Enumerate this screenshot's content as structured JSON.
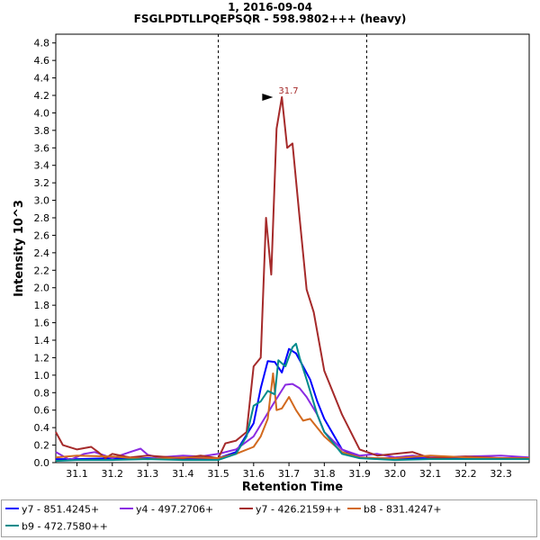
{
  "header": {
    "title": "1, 2016-09-04",
    "subtitle": "FSGLPDTLLPQEPSQR - 598.9802+++ (heavy)"
  },
  "chart_data": {
    "type": "line",
    "xlabel": "Retention Time",
    "ylabel": "Intensity  10^3",
    "xlim": [
      31.04,
      32.38
    ],
    "ylim": [
      0,
      4.9
    ],
    "x_ticks": [
      "31.1",
      "31.2",
      "31.3",
      "31.4",
      "31.5",
      "31.6",
      "31.7",
      "31.8",
      "31.9",
      "32.0",
      "32.1",
      "32.2",
      "32.3"
    ],
    "y_ticks": [
      "0.0",
      "0.2",
      "0.4",
      "0.6",
      "0.8",
      "1.0",
      "1.2",
      "1.4",
      "1.6",
      "1.8",
      "2.0",
      "2.2",
      "2.4",
      "2.6",
      "2.8",
      "3.0",
      "3.2",
      "3.4",
      "3.6",
      "3.8",
      "4.0",
      "4.2",
      "4.4",
      "4.6",
      "4.8"
    ],
    "boundary_lines": [
      31.5,
      31.92
    ],
    "peak_annotation": {
      "label": "31.7",
      "x": 31.66,
      "y": 4.18
    },
    "series": [
      {
        "name": "y7 - 851.4245+",
        "color": "#0000ff",
        "x": [
          31.04,
          31.1,
          31.2,
          31.3,
          31.4,
          31.5,
          31.55,
          31.6,
          31.62,
          31.64,
          31.66,
          31.68,
          31.7,
          31.72,
          31.74,
          31.76,
          31.78,
          31.8,
          31.85,
          31.9,
          31.95,
          32.0,
          32.1,
          32.2,
          32.3,
          32.38
        ],
        "y": [
          0.04,
          0.04,
          0.05,
          0.05,
          0.04,
          0.05,
          0.12,
          0.45,
          0.85,
          1.16,
          1.15,
          1.03,
          1.3,
          1.25,
          1.1,
          0.95,
          0.7,
          0.5,
          0.15,
          0.06,
          0.05,
          0.05,
          0.05,
          0.05,
          0.05,
          0.05
        ]
      },
      {
        "name": "y4 - 497.2706+",
        "color": "#8a2be2",
        "x": [
          31.04,
          31.08,
          31.12,
          31.15,
          31.2,
          31.25,
          31.28,
          31.3,
          31.33,
          31.4,
          31.45,
          31.5,
          31.55,
          31.6,
          31.63,
          31.66,
          31.69,
          31.71,
          31.73,
          31.75,
          31.78,
          31.8,
          31.85,
          31.9,
          31.95,
          32.0,
          32.05,
          32.1,
          32.2,
          32.3,
          32.38
        ],
        "y": [
          0.12,
          0.03,
          0.1,
          0.12,
          0.05,
          0.12,
          0.16,
          0.09,
          0.06,
          0.08,
          0.07,
          0.1,
          0.15,
          0.3,
          0.5,
          0.7,
          0.89,
          0.9,
          0.85,
          0.75,
          0.55,
          0.35,
          0.15,
          0.08,
          0.1,
          0.06,
          0.08,
          0.06,
          0.07,
          0.08,
          0.06
        ]
      },
      {
        "name": "y7 - 426.2159++",
        "color": "#a52a2a",
        "x": [
          31.04,
          31.06,
          31.1,
          31.14,
          31.16,
          31.18,
          31.2,
          31.25,
          31.3,
          31.4,
          31.45,
          31.5,
          31.52,
          31.55,
          31.58,
          31.6,
          31.62,
          31.635,
          31.65,
          31.665,
          31.68,
          31.695,
          31.71,
          31.73,
          31.75,
          31.77,
          31.8,
          31.85,
          31.9,
          31.95,
          32.0,
          32.05,
          32.1,
          32.2,
          32.3,
          32.38
        ],
        "y": [
          0.35,
          0.2,
          0.15,
          0.18,
          0.12,
          0.05,
          0.1,
          0.06,
          0.08,
          0.05,
          0.08,
          0.05,
          0.22,
          0.25,
          0.35,
          1.1,
          1.2,
          2.8,
          2.15,
          3.82,
          4.18,
          3.6,
          3.65,
          2.8,
          1.98,
          1.72,
          1.05,
          0.55,
          0.15,
          0.08,
          0.1,
          0.12,
          0.05,
          0.07,
          0.05,
          0.05
        ]
      },
      {
        "name": "b8 - 831.4247+",
        "color": "#d2691e",
        "x": [
          31.04,
          31.1,
          31.2,
          31.3,
          31.4,
          31.5,
          31.55,
          31.6,
          31.62,
          31.64,
          31.655,
          31.665,
          31.68,
          31.7,
          31.72,
          31.74,
          31.76,
          31.8,
          31.85,
          31.9,
          31.95,
          32.0,
          32.1,
          32.2,
          32.3,
          32.38
        ],
        "y": [
          0.06,
          0.08,
          0.07,
          0.04,
          0.06,
          0.05,
          0.1,
          0.18,
          0.3,
          0.5,
          1.02,
          0.6,
          0.62,
          0.75,
          0.6,
          0.48,
          0.5,
          0.3,
          0.12,
          0.06,
          0.05,
          0.05,
          0.08,
          0.06,
          0.05,
          0.05
        ]
      },
      {
        "name": "b9 - 472.7580++",
        "color": "#008b8b",
        "x": [
          31.04,
          31.1,
          31.2,
          31.3,
          31.4,
          31.5,
          31.55,
          31.58,
          31.6,
          31.62,
          31.64,
          31.66,
          31.67,
          31.69,
          31.71,
          31.72,
          31.73,
          31.75,
          31.78,
          31.8,
          31.85,
          31.9,
          31.95,
          32.0,
          32.1,
          32.2,
          32.3,
          32.38
        ],
        "y": [
          0.02,
          0.03,
          0.03,
          0.04,
          0.03,
          0.03,
          0.1,
          0.3,
          0.65,
          0.7,
          0.82,
          0.78,
          1.17,
          1.1,
          1.32,
          1.36,
          1.2,
          0.95,
          0.55,
          0.35,
          0.1,
          0.05,
          0.04,
          0.03,
          0.04,
          0.04,
          0.04,
          0.04
        ]
      }
    ]
  },
  "legend": {
    "items": [
      "y7 - 851.4245+",
      "y4 - 497.2706+",
      "y7 - 426.2159++",
      "b8 - 831.4247+",
      "b9 - 472.7580++"
    ],
    "colors": [
      "#0000ff",
      "#8a2be2",
      "#a52a2a",
      "#d2691e",
      "#008b8b"
    ]
  }
}
